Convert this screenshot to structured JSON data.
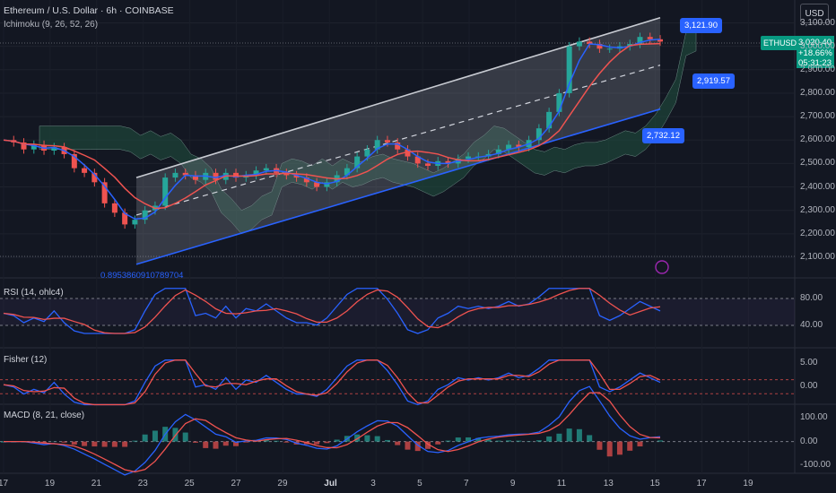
{
  "header": {
    "title": "Ethereum / U.S. Dollar · 6h · COINBASE",
    "indicator": "Ichimoku (9, 26, 52, 26)",
    "currency_button": "USD"
  },
  "price_axis": {
    "ticks": [
      "3,100.00",
      "3,000.00",
      "2,900.00",
      "2,800.00",
      "2,700.00",
      "2,600.00",
      "2,500.00",
      "2,400.00",
      "2,300.00",
      "2,200.00",
      "2,100.00"
    ],
    "tick_values": [
      3100,
      3000,
      2900,
      2800,
      2700,
      2600,
      2500,
      2400,
      2300,
      2200,
      2100
    ]
  },
  "symbol_tag": "ETHUSD",
  "last_price": {
    "price": "3,020.40",
    "change": "+18.66%",
    "countdown": "05:31:23"
  },
  "channel_tags": {
    "upper": "3,121.90",
    "mid": "2,919.57",
    "lower": "2,732.12"
  },
  "fib_text": "0.8953860910789704",
  "panes": {
    "rsi": {
      "title": "RSI (14, ohlc4)",
      "ticks": [
        "80.00",
        "40.00"
      ]
    },
    "fisher": {
      "title": "Fisher (12)",
      "ticks": [
        "5.00",
        "0.00"
      ]
    },
    "macd": {
      "title": "MACD (8, 21, close)",
      "ticks": [
        "100.00",
        "0.00",
        "-100.00"
      ]
    }
  },
  "time_axis": [
    "17",
    "19",
    "21",
    "23",
    "25",
    "27",
    "29",
    "Jul",
    "3",
    "5",
    "7",
    "9",
    "11",
    "13",
    "15",
    "17",
    "19"
  ],
  "colors": {
    "background": "#131722",
    "up": "#26a69a",
    "down": "#ef5350",
    "blue": "#2962ff",
    "channel_fill": "#9598a1",
    "cloud_green": "#1f4d3e"
  },
  "chart_data": {
    "type": "candlestick",
    "title": "Ethereum / U.S. Dollar · 6h · COINBASE",
    "ylim": [
      2060,
      3160
    ],
    "x_dates": [
      "17",
      "19",
      "21",
      "23",
      "25",
      "27",
      "29",
      "Jul",
      "3",
      "5",
      "7",
      "9",
      "11",
      "13",
      "15",
      "17",
      "19"
    ],
    "close_path": [
      2600,
      2590,
      2560,
      2580,
      2555,
      2570,
      2540,
      2480,
      2460,
      2420,
      2330,
      2290,
      2240,
      2260,
      2300,
      2320,
      2440,
      2460,
      2450,
      2430,
      2460,
      2430,
      2460,
      2440,
      2450,
      2470,
      2480,
      2460,
      2450,
      2440,
      2420,
      2400,
      2420,
      2450,
      2480,
      2530,
      2560,
      2600,
      2590,
      2560,
      2530,
      2500,
      2490,
      2510,
      2500,
      2520,
      2530,
      2530,
      2540,
      2560,
      2580,
      2570,
      2600,
      2650,
      2720,
      2800,
      3000,
      3020,
      3010,
      2990,
      2990,
      3000,
      3010,
      3040,
      3030,
      3020
    ],
    "channel": {
      "upper": [
        2440,
        3121.9
      ],
      "mid": [
        2280,
        2919.57
      ],
      "lower": [
        2070,
        2732.12
      ]
    },
    "last_price": 3020.4,
    "change_pct": 18.66,
    "rsi_ylim": [
      20,
      100
    ],
    "fisher_ylim": [
      -3,
      7
    ],
    "macd_ylim": [
      -120,
      140
    ]
  }
}
